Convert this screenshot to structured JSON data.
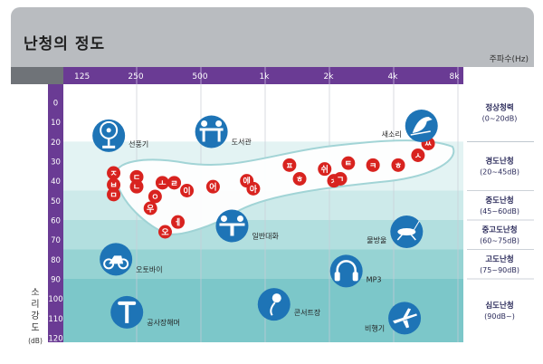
{
  "page": {
    "title": "난청의 정도"
  },
  "chart_data": {
    "type": "scatter",
    "title": "난청의 정도",
    "xlabel": "주파수(Hz)",
    "ylabel": "소리강도",
    "ylabel_unit": "(dB)",
    "x_scale": "log",
    "x_ticks": [
      "125",
      "250",
      "500",
      "1k",
      "2k",
      "4k",
      "8k"
    ],
    "x_values": [
      125,
      250,
      500,
      1000,
      2000,
      4000,
      8000
    ],
    "y_ticks": [
      "0",
      "10",
      "20",
      "30",
      "40",
      "50",
      "60",
      "70",
      "80",
      "90",
      "100",
      "110",
      "120"
    ],
    "ylim": [
      0,
      120
    ],
    "grid": true,
    "bands": [
      {
        "name": "정상청력",
        "range": "(0~20dB)",
        "y0": 0,
        "y1": 20,
        "color": "#ffffff"
      },
      {
        "name": "경도난청",
        "range": "(20~45dB)",
        "y0": 20,
        "y1": 45,
        "color": "#e3f3f3"
      },
      {
        "name": "중도난청",
        "range": "(45~60dB)",
        "y0": 45,
        "y1": 60,
        "color": "#cdeaea"
      },
      {
        "name": "중고도난청",
        "range": "(60~75dB)",
        "y0": 60,
        "y1": 75,
        "color": "#b2dfdf"
      },
      {
        "name": "고도난청",
        "range": "(75~90dB)",
        "y0": 75,
        "y1": 90,
        "color": "#96d3d3"
      },
      {
        "name": "심도난청",
        "range": "(90dB~)",
        "y0": 90,
        "y1": 120,
        "color": "#7cc7c9"
      }
    ],
    "phonemes": [
      {
        "text": "ㅈ",
        "x": 195,
        "y": 36
      },
      {
        "text": "ㅂ",
        "x": 195,
        "y": 42
      },
      {
        "text": "ㄷ",
        "x": 250,
        "y": 38
      },
      {
        "text": "ㄴ",
        "x": 250,
        "y": 43
      },
      {
        "text": "ㅁ",
        "x": 195,
        "y": 47
      },
      {
        "text": "ㅗ",
        "x": 330,
        "y": 41
      },
      {
        "text": "ㄹ",
        "x": 375,
        "y": 41
      },
      {
        "text": "ㅇ",
        "x": 305,
        "y": 48
      },
      {
        "text": "우",
        "x": 290,
        "y": 54
      },
      {
        "text": "ㅔ",
        "x": 390,
        "y": 61
      },
      {
        "text": "오",
        "x": 340,
        "y": 66
      },
      {
        "text": "이",
        "x": 430,
        "y": 45
      },
      {
        "text": "어",
        "x": 570,
        "y": 43
      },
      {
        "text": "에",
        "x": 820,
        "y": 40
      },
      {
        "text": "아",
        "x": 880,
        "y": 44
      },
      {
        "text": "ㅍ",
        "x": 1300,
        "y": 32
      },
      {
        "text": "ㅎ",
        "x": 1450,
        "y": 39
      },
      {
        "text": "ㅊ",
        "x": 2100,
        "y": 40
      },
      {
        "text": "쉬",
        "x": 1900,
        "y": 34
      },
      {
        "text": "ㄱ",
        "x": 2250,
        "y": 39
      },
      {
        "text": "ㅌ",
        "x": 2450,
        "y": 31
      },
      {
        "text": "ㅋ",
        "x": 3200,
        "y": 32
      },
      {
        "text": "ㅎ",
        "x": 4200,
        "y": 32
      },
      {
        "text": "ㅅ",
        "x": 5200,
        "y": 27
      },
      {
        "text": "ㅆ",
        "x": 5800,
        "y": 21
      }
    ],
    "sounds": [
      {
        "name": "선풍기",
        "x": 185,
        "y": 17,
        "icon": "fan-icon"
      },
      {
        "name": "도서관",
        "x": 560,
        "y": 15,
        "icon": "library-icon"
      },
      {
        "name": "새소리",
        "x": 5400,
        "y": 12,
        "icon": "bird-icon"
      },
      {
        "name": "일반대화",
        "x": 700,
        "y": 63,
        "icon": "conversation-icon"
      },
      {
        "name": "물방울",
        "x": 4600,
        "y": 66,
        "icon": "cricket-icon"
      },
      {
        "name": "오토바이",
        "x": 200,
        "y": 80,
        "icon": "motorcycle-icon"
      },
      {
        "name": "MP3",
        "x": 2400,
        "y": 86,
        "icon": "headphones-icon"
      },
      {
        "name": "공사장해머",
        "x": 225,
        "y": 107,
        "icon": "jackhammer-icon"
      },
      {
        "name": "콘서트장",
        "x": 1100,
        "y": 103,
        "icon": "concert-icon"
      },
      {
        "name": "비행기",
        "x": 4500,
        "y": 110,
        "icon": "airplane-icon"
      }
    ]
  }
}
